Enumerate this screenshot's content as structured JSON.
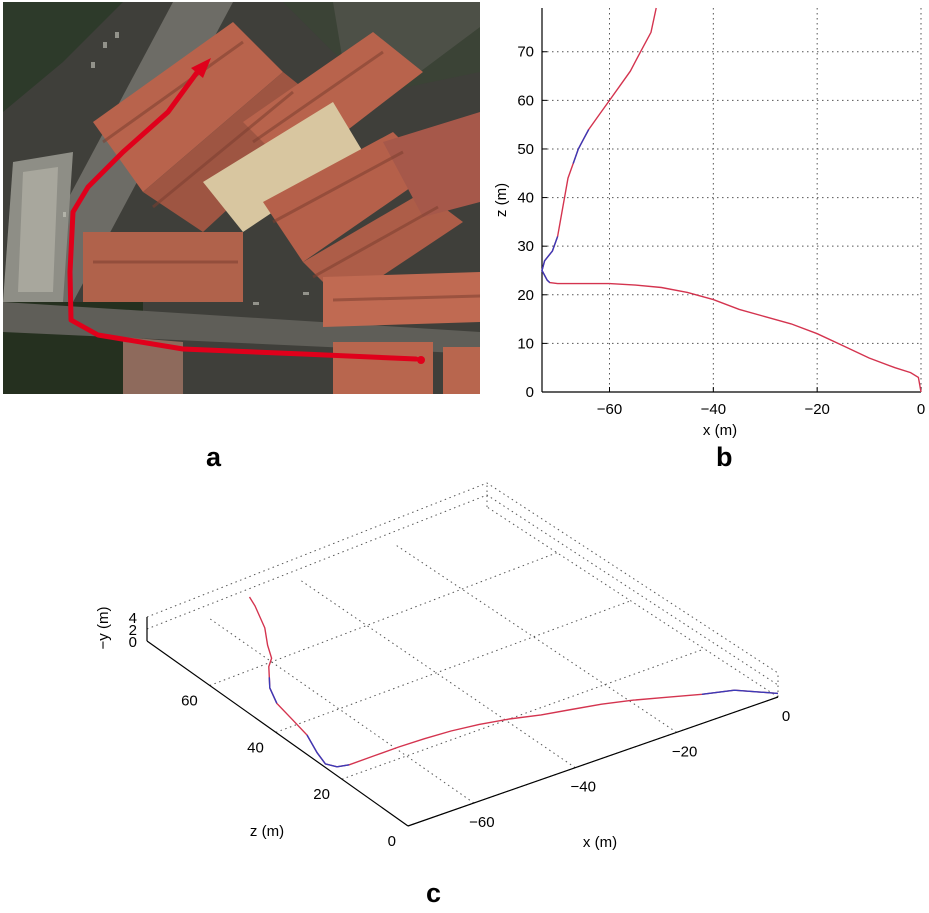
{
  "panel_labels": {
    "a": "a",
    "b": "b",
    "c": "c"
  },
  "colors": {
    "path_red": "#e0001b",
    "trace_red": "#d4344f",
    "trace_blue": "#3a3ab8",
    "roof": "#b8634c"
  },
  "chart_data": [
    {
      "panel": "b",
      "type": "line",
      "xlabel": "x (m)",
      "ylabel": "z (m)",
      "xlim": [
        -73,
        0
      ],
      "ylim": [
        0,
        79
      ],
      "xticks": [
        -60,
        -40,
        -20,
        0
      ],
      "yticks": [
        0,
        10,
        20,
        30,
        40,
        50,
        60,
        70
      ],
      "x_tick_labels": [
        "−60",
        "−40",
        "−20",
        "0"
      ],
      "y_tick_labels": [
        "0",
        "10",
        "20",
        "30",
        "40",
        "50",
        "60",
        "70"
      ],
      "grid": true,
      "series": [
        {
          "color": "#d4344f",
          "x": [
            0,
            -0.5,
            -2,
            -5,
            -10,
            -15,
            -20,
            -25,
            -30,
            -35,
            -40,
            -45,
            -50,
            -55,
            -60,
            -65,
            -70,
            -71.5,
            -72,
            -73,
            -72.5,
            -71,
            -70,
            -69.5,
            -69,
            -68.5,
            -68,
            -67,
            -66,
            -65,
            -64,
            -62,
            -60,
            -58,
            -56,
            -54,
            -52,
            -51
          ],
          "z": [
            0,
            3,
            4,
            5,
            7,
            9.5,
            12,
            14,
            15.5,
            17,
            19,
            20.5,
            21.5,
            22,
            22.3,
            22.3,
            22.3,
            22.5,
            23,
            25,
            27,
            29,
            32,
            35,
            38,
            41,
            44,
            47,
            50,
            52,
            54,
            57,
            60,
            63,
            66,
            70,
            74,
            79
          ]
        }
      ]
    },
    {
      "panel": "c",
      "type": "line",
      "xlabel": "x (m)",
      "ylabel": "z (m)",
      "zlabel": "−y (m)",
      "x_tick_labels": [
        "−60",
        "−40",
        "−20",
        "0"
      ],
      "z_tick_labels": [
        "0",
        "20",
        "40",
        "60"
      ],
      "y_tick_labels": [
        "0",
        "2",
        "4"
      ],
      "grid": true,
      "series": [
        {
          "color": "#d4344f",
          "x": [
            0,
            -5,
            -10,
            -15,
            -20,
            -25,
            -30,
            -35,
            -40,
            -45,
            -50,
            -55,
            -60,
            -65,
            -70,
            -72,
            -73,
            -72,
            -70,
            -69,
            -68,
            -66,
            -64,
            -62,
            -60,
            -58,
            -55,
            -52,
            -51
          ],
          "z": [
            0,
            5,
            7,
            9.5,
            12,
            14,
            15.5,
            17,
            19,
            20.5,
            21.5,
            22,
            22.3,
            22.3,
            22.3,
            23,
            25,
            29,
            35,
            41,
            47,
            52,
            55,
            58,
            60,
            64,
            69,
            76,
            79
          ]
        }
      ]
    }
  ]
}
